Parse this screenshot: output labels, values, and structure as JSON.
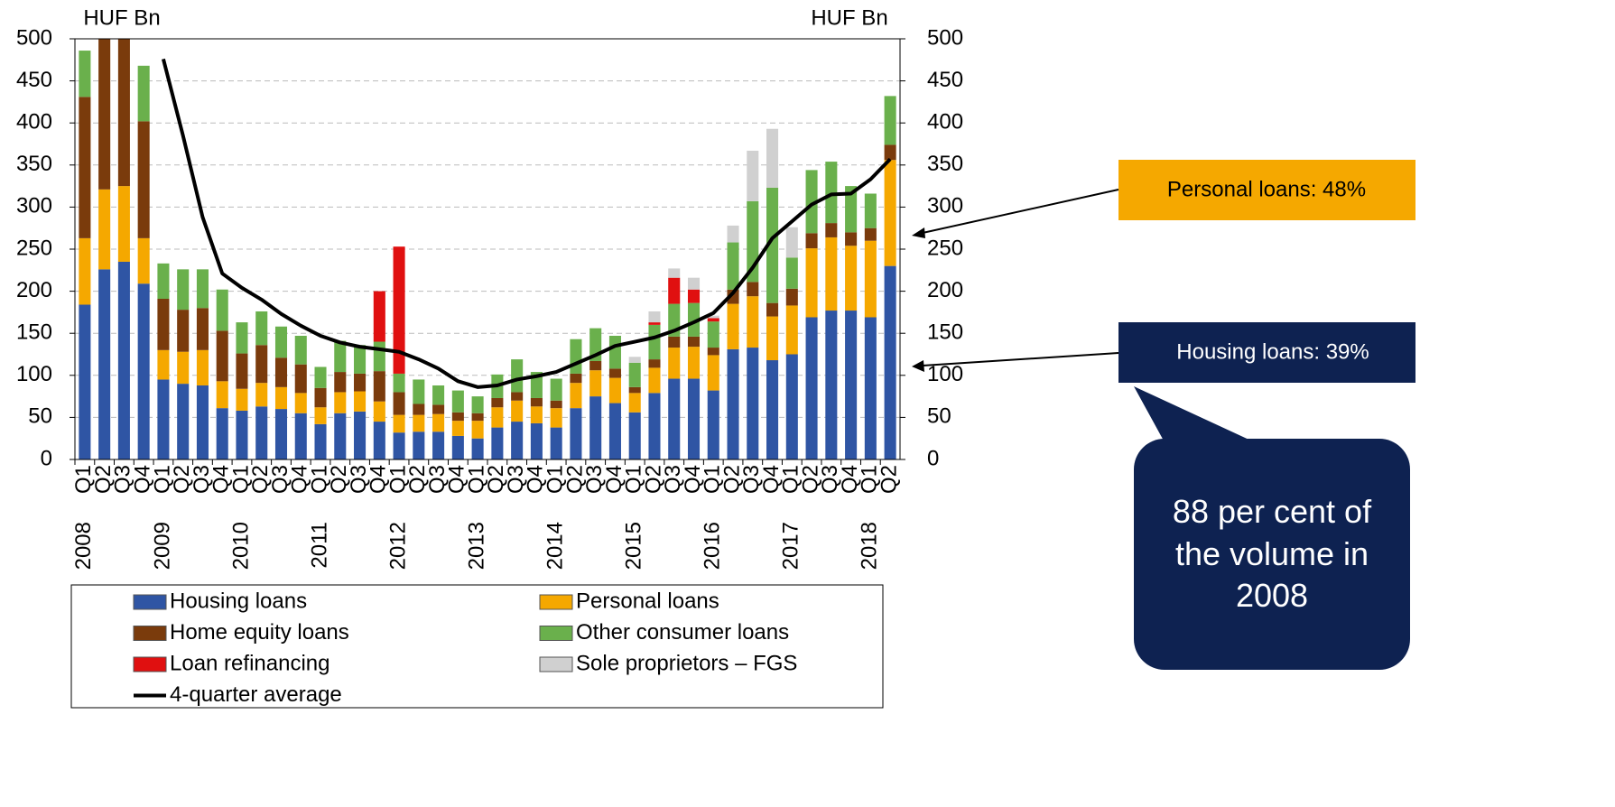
{
  "chart_data": {
    "type": "bar",
    "stacked": true,
    "y_label": "HUF Bn",
    "y2_label": "HUF Bn",
    "categories": [
      "Q1",
      "Q2",
      "Q3",
      "Q4",
      "Q1",
      "Q2",
      "Q3",
      "Q4",
      "Q1",
      "Q2",
      "Q3",
      "Q4",
      "Q1",
      "Q2",
      "Q3",
      "Q4",
      "Q1",
      "Q2",
      "Q3",
      "Q4",
      "Q1",
      "Q2",
      "Q3",
      "Q4",
      "Q1",
      "Q2",
      "Q3",
      "Q4",
      "Q1",
      "Q2",
      "Q3",
      "Q4",
      "Q1",
      "Q2",
      "Q3",
      "Q4",
      "Q1",
      "Q2",
      "Q3",
      "Q4",
      "Q1",
      "Q2"
    ],
    "years": [
      "2008",
      null,
      null,
      null,
      "2009",
      null,
      null,
      null,
      "2010",
      null,
      null,
      null,
      "2011",
      null,
      null,
      null,
      "2012",
      null,
      null,
      null,
      "2013",
      null,
      null,
      null,
      "2014",
      null,
      null,
      null,
      "2015",
      null,
      null,
      null,
      "2016",
      null,
      null,
      null,
      "2017",
      null,
      null,
      null,
      "2018",
      null
    ],
    "series": [
      {
        "name": "Housing loans",
        "color": "#2f55a4",
        "values": [
          184,
          226,
          235,
          209,
          95,
          90,
          88,
          61,
          58,
          63,
          60,
          55,
          42,
          55,
          57,
          45,
          32,
          33,
          33,
          28,
          25,
          38,
          45,
          43,
          38,
          61,
          75,
          67,
          56,
          79,
          96,
          96,
          82,
          131,
          133,
          118,
          125,
          169,
          177,
          177,
          169,
          230
        ]
      },
      {
        "name": "Personal loans",
        "color": "#f5a800",
        "values": [
          79,
          95,
          90,
          54,
          35,
          38,
          42,
          32,
          26,
          28,
          26,
          24,
          20,
          25,
          24,
          24,
          21,
          20,
          21,
          18,
          21,
          24,
          25,
          20,
          23,
          30,
          31,
          30,
          23,
          30,
          37,
          38,
          42,
          54,
          61,
          52,
          58,
          82,
          87,
          77,
          91,
          126
        ]
      },
      {
        "name": "Home equity loans",
        "color": "#7a3b0c",
        "values": [
          168,
          200,
          200,
          139,
          61,
          50,
          50,
          60,
          42,
          45,
          35,
          34,
          23,
          24,
          21,
          36,
          27,
          13,
          11,
          10,
          9,
          11,
          10,
          10,
          9,
          11,
          11,
          11,
          7,
          10,
          13,
          12,
          9,
          17,
          17,
          16,
          20,
          18,
          17,
          16,
          15,
          18
        ]
      },
      {
        "name": "Other consumer loans",
        "color": "#6ab04c",
        "values": [
          55,
          40,
          40,
          66,
          42,
          48,
          46,
          49,
          37,
          40,
          37,
          34,
          25,
          37,
          34,
          35,
          22,
          29,
          23,
          26,
          20,
          28,
          39,
          31,
          26,
          41,
          39,
          39,
          29,
          41,
          39,
          40,
          31,
          56,
          96,
          137,
          37,
          75,
          73,
          55,
          41,
          58
        ]
      },
      {
        "name": "Loan refinancing",
        "color": "#e01010",
        "values": [
          0,
          0,
          0,
          0,
          0,
          0,
          0,
          0,
          0,
          0,
          0,
          0,
          0,
          0,
          0,
          60,
          151,
          0,
          0,
          0,
          0,
          0,
          0,
          0,
          0,
          0,
          0,
          0,
          0,
          3,
          31,
          16,
          4,
          0,
          0,
          0,
          0,
          0,
          0,
          0,
          0,
          0
        ]
      },
      {
        "name": "Sole proprietors – FGS",
        "color": "#d0d0d0",
        "values": [
          0,
          0,
          0,
          0,
          0,
          0,
          0,
          0,
          0,
          0,
          0,
          0,
          0,
          0,
          0,
          0,
          0,
          0,
          0,
          0,
          0,
          0,
          0,
          0,
          0,
          0,
          0,
          0,
          7,
          13,
          11,
          14,
          3,
          20,
          60,
          70,
          36,
          0,
          0,
          0,
          0,
          0
        ]
      },
      {
        "name": "4-quarter average",
        "type": "line",
        "color": "#000000",
        "values": [
          null,
          null,
          null,
          null,
          476,
          385,
          288,
          221,
          204,
          190,
          173,
          159,
          147,
          139,
          134,
          131,
          128,
          119,
          108,
          93,
          86,
          88,
          95,
          99,
          104,
          114,
          124,
          135,
          140,
          145,
          153,
          163,
          174,
          198,
          228,
          263,
          283,
          303,
          315,
          316,
          333,
          357
        ]
      }
    ],
    "ylim": [
      0,
      500
    ],
    "yticks": [
      0,
      50,
      100,
      150,
      200,
      250,
      300,
      350,
      400,
      450,
      500
    ],
    "y2lim": [
      0,
      500
    ],
    "y2ticks": [
      0,
      50,
      100,
      150,
      200,
      250,
      300,
      350,
      400,
      450,
      500
    ],
    "grid": true,
    "annotations": [
      {
        "text": "Personal loans: 48%",
        "color": "#f5a800"
      },
      {
        "text": "Housing loans: 39%",
        "color": "#0e2251"
      },
      {
        "text": "88 per cent of the volume in 2008",
        "color": "#0e2251"
      }
    ]
  }
}
